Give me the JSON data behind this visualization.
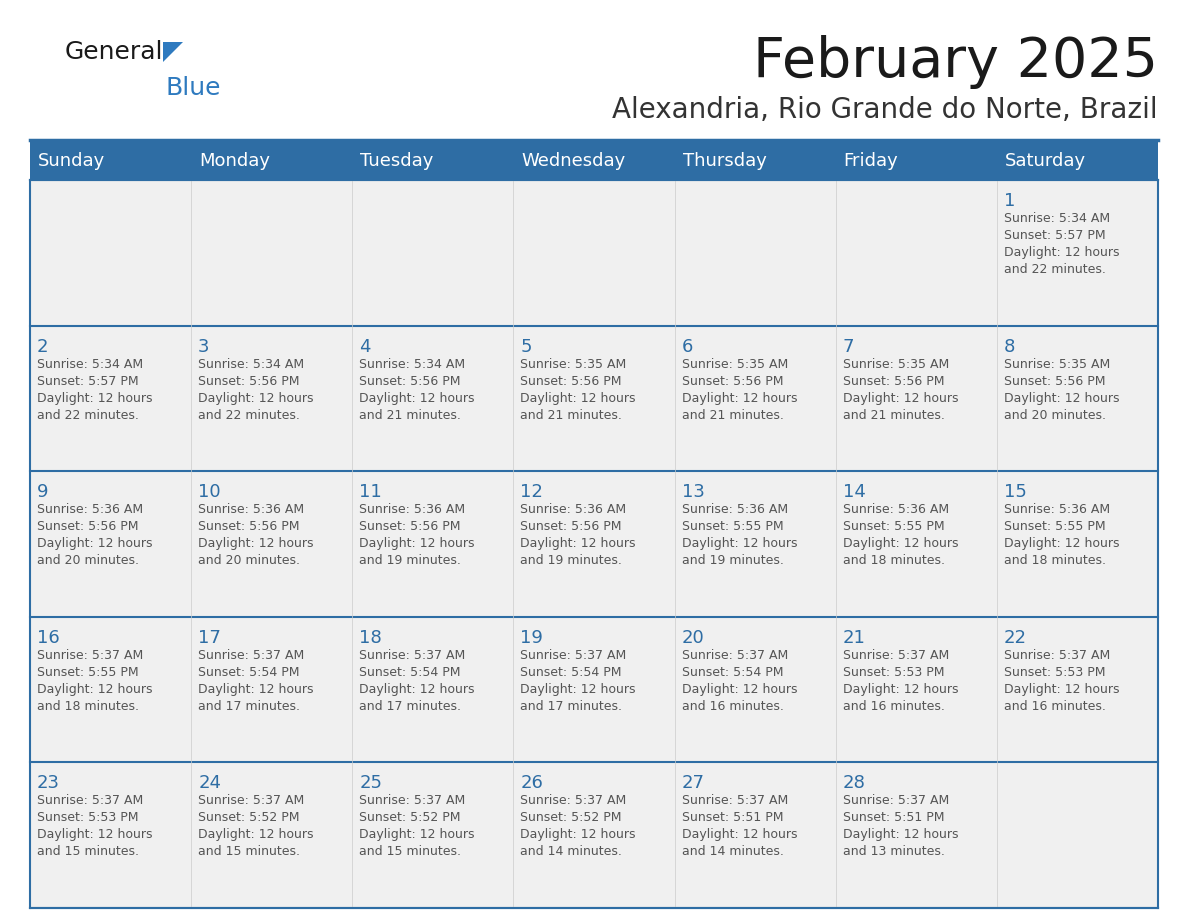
{
  "title": "February 2025",
  "subtitle": "Alexandria, Rio Grande do Norte, Brazil",
  "header_bg": "#2e6da4",
  "header_text_color": "#ffffff",
  "day_names": [
    "Sunday",
    "Monday",
    "Tuesday",
    "Wednesday",
    "Thursday",
    "Friday",
    "Saturday"
  ],
  "cell_bg": "#f0f0f0",
  "border_color": "#2e6da4",
  "day_num_color": "#2e6da4",
  "text_color": "#555555",
  "title_color": "#1a1a1a",
  "subtitle_color": "#333333",
  "logo_general_color": "#1a1a1a",
  "logo_blue_color": "#2e7abf",
  "calendar": [
    [
      null,
      null,
      null,
      null,
      null,
      null,
      1
    ],
    [
      2,
      3,
      4,
      5,
      6,
      7,
      8
    ],
    [
      9,
      10,
      11,
      12,
      13,
      14,
      15
    ],
    [
      16,
      17,
      18,
      19,
      20,
      21,
      22
    ],
    [
      23,
      24,
      25,
      26,
      27,
      28,
      null
    ]
  ],
  "cell_data": {
    "1": {
      "sunrise": "5:34 AM",
      "sunset": "5:57 PM",
      "daylight": "12 hours",
      "daylight2": "and 22 minutes."
    },
    "2": {
      "sunrise": "5:34 AM",
      "sunset": "5:57 PM",
      "daylight": "12 hours",
      "daylight2": "and 22 minutes."
    },
    "3": {
      "sunrise": "5:34 AM",
      "sunset": "5:56 PM",
      "daylight": "12 hours",
      "daylight2": "and 22 minutes."
    },
    "4": {
      "sunrise": "5:34 AM",
      "sunset": "5:56 PM",
      "daylight": "12 hours",
      "daylight2": "and 21 minutes."
    },
    "5": {
      "sunrise": "5:35 AM",
      "sunset": "5:56 PM",
      "daylight": "12 hours",
      "daylight2": "and 21 minutes."
    },
    "6": {
      "sunrise": "5:35 AM",
      "sunset": "5:56 PM",
      "daylight": "12 hours",
      "daylight2": "and 21 minutes."
    },
    "7": {
      "sunrise": "5:35 AM",
      "sunset": "5:56 PM",
      "daylight": "12 hours",
      "daylight2": "and 21 minutes."
    },
    "8": {
      "sunrise": "5:35 AM",
      "sunset": "5:56 PM",
      "daylight": "12 hours",
      "daylight2": "and 20 minutes."
    },
    "9": {
      "sunrise": "5:36 AM",
      "sunset": "5:56 PM",
      "daylight": "12 hours",
      "daylight2": "and 20 minutes."
    },
    "10": {
      "sunrise": "5:36 AM",
      "sunset": "5:56 PM",
      "daylight": "12 hours",
      "daylight2": "and 20 minutes."
    },
    "11": {
      "sunrise": "5:36 AM",
      "sunset": "5:56 PM",
      "daylight": "12 hours",
      "daylight2": "and 19 minutes."
    },
    "12": {
      "sunrise": "5:36 AM",
      "sunset": "5:56 PM",
      "daylight": "12 hours",
      "daylight2": "and 19 minutes."
    },
    "13": {
      "sunrise": "5:36 AM",
      "sunset": "5:55 PM",
      "daylight": "12 hours",
      "daylight2": "and 19 minutes."
    },
    "14": {
      "sunrise": "5:36 AM",
      "sunset": "5:55 PM",
      "daylight": "12 hours",
      "daylight2": "and 18 minutes."
    },
    "15": {
      "sunrise": "5:36 AM",
      "sunset": "5:55 PM",
      "daylight": "12 hours",
      "daylight2": "and 18 minutes."
    },
    "16": {
      "sunrise": "5:37 AM",
      "sunset": "5:55 PM",
      "daylight": "12 hours",
      "daylight2": "and 18 minutes."
    },
    "17": {
      "sunrise": "5:37 AM",
      "sunset": "5:54 PM",
      "daylight": "12 hours",
      "daylight2": "and 17 minutes."
    },
    "18": {
      "sunrise": "5:37 AM",
      "sunset": "5:54 PM",
      "daylight": "12 hours",
      "daylight2": "and 17 minutes."
    },
    "19": {
      "sunrise": "5:37 AM",
      "sunset": "5:54 PM",
      "daylight": "12 hours",
      "daylight2": "and 17 minutes."
    },
    "20": {
      "sunrise": "5:37 AM",
      "sunset": "5:54 PM",
      "daylight": "12 hours",
      "daylight2": "and 16 minutes."
    },
    "21": {
      "sunrise": "5:37 AM",
      "sunset": "5:53 PM",
      "daylight": "12 hours",
      "daylight2": "and 16 minutes."
    },
    "22": {
      "sunrise": "5:37 AM",
      "sunset": "5:53 PM",
      "daylight": "12 hours",
      "daylight2": "and 16 minutes."
    },
    "23": {
      "sunrise": "5:37 AM",
      "sunset": "5:53 PM",
      "daylight": "12 hours",
      "daylight2": "and 15 minutes."
    },
    "24": {
      "sunrise": "5:37 AM",
      "sunset": "5:52 PM",
      "daylight": "12 hours",
      "daylight2": "and 15 minutes."
    },
    "25": {
      "sunrise": "5:37 AM",
      "sunset": "5:52 PM",
      "daylight": "12 hours",
      "daylight2": "and 15 minutes."
    },
    "26": {
      "sunrise": "5:37 AM",
      "sunset": "5:52 PM",
      "daylight": "12 hours",
      "daylight2": "and 14 minutes."
    },
    "27": {
      "sunrise": "5:37 AM",
      "sunset": "5:51 PM",
      "daylight": "12 hours",
      "daylight2": "and 14 minutes."
    },
    "28": {
      "sunrise": "5:37 AM",
      "sunset": "5:51 PM",
      "daylight": "12 hours",
      "daylight2": "and 13 minutes."
    }
  }
}
